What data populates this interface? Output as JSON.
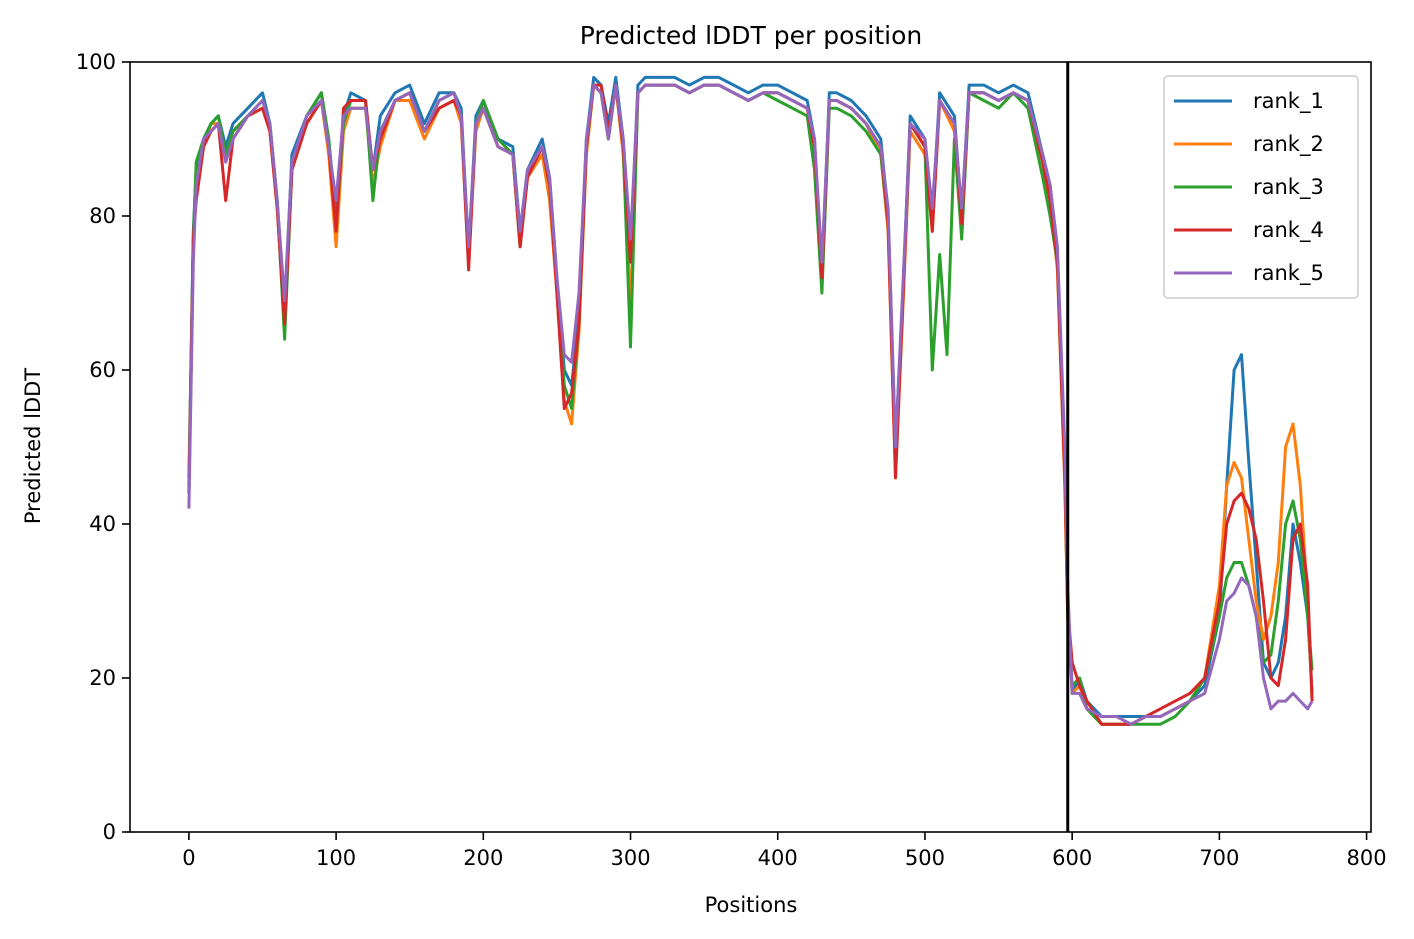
{
  "chart_data": {
    "type": "line",
    "title": "Predicted lDDT per position",
    "xlabel": "Positions",
    "ylabel": "Predicted lDDT",
    "xlim": [
      -40,
      803
    ],
    "ylim": [
      0,
      100
    ],
    "xticks": [
      0,
      100,
      200,
      300,
      400,
      500,
      600,
      700,
      800
    ],
    "xtick_labels": [
      "0",
      "100",
      "200",
      "300",
      "400",
      "500",
      "600",
      "700",
      "800"
    ],
    "yticks": [
      0,
      20,
      40,
      60,
      80,
      100
    ],
    "ytick_labels": [
      "0",
      "20",
      "40",
      "60",
      "80",
      "100"
    ],
    "vline": 597,
    "grid": false,
    "legend_position": "top-right",
    "series": [
      {
        "name": "rank_1",
        "color": "#1f77b4",
        "x": [
          0,
          3,
          5,
          10,
          15,
          20,
          25,
          30,
          40,
          50,
          55,
          60,
          65,
          70,
          80,
          90,
          95,
          100,
          105,
          110,
          120,
          125,
          130,
          140,
          150,
          160,
          170,
          180,
          185,
          190,
          195,
          200,
          210,
          220,
          225,
          230,
          240,
          245,
          250,
          255,
          260,
          265,
          270,
          275,
          280,
          285,
          290,
          295,
          300,
          305,
          310,
          320,
          330,
          340,
          350,
          360,
          370,
          380,
          390,
          400,
          410,
          420,
          425,
          430,
          435,
          440,
          450,
          460,
          470,
          475,
          480,
          485,
          490,
          500,
          505,
          510,
          520,
          525,
          530,
          540,
          550,
          560,
          570,
          580,
          585,
          590,
          595,
          597,
          600,
          605,
          610,
          620,
          630,
          640,
          650,
          660,
          670,
          680,
          690,
          700,
          705,
          710,
          715,
          720,
          725,
          730,
          735,
          740,
          745,
          750,
          755,
          760,
          763
        ],
        "y": [
          46,
          78,
          86,
          90,
          92,
          93,
          89,
          92,
          94,
          96,
          92,
          82,
          67,
          88,
          93,
          96,
          90,
          80,
          93,
          96,
          95,
          86,
          93,
          96,
          97,
          92,
          96,
          96,
          94,
          75,
          93,
          95,
          90,
          89,
          78,
          86,
          90,
          85,
          72,
          60,
          58,
          67,
          90,
          98,
          97,
          92,
          98,
          90,
          75,
          97,
          98,
          98,
          98,
          97,
          98,
          98,
          97,
          96,
          97,
          97,
          96,
          95,
          90,
          72,
          96,
          96,
          95,
          93,
          90,
          80,
          50,
          70,
          93,
          90,
          80,
          96,
          93,
          80,
          97,
          97,
          96,
          97,
          96,
          88,
          84,
          75,
          48,
          30,
          18,
          20,
          17,
          15,
          15,
          15,
          15,
          15,
          16,
          17,
          19,
          28,
          45,
          60,
          62,
          48,
          35,
          22,
          20,
          22,
          28,
          40,
          35,
          28,
          18
        ]
      },
      {
        "name": "rank_2",
        "color": "#ff7f0e",
        "x": [
          0,
          3,
          5,
          10,
          15,
          20,
          25,
          30,
          40,
          50,
          55,
          60,
          65,
          70,
          80,
          90,
          95,
          100,
          105,
          110,
          120,
          125,
          130,
          140,
          150,
          160,
          170,
          180,
          185,
          190,
          195,
          200,
          210,
          220,
          225,
          230,
          240,
          245,
          250,
          255,
          260,
          265,
          270,
          275,
          280,
          285,
          290,
          295,
          300,
          305,
          310,
          320,
          330,
          340,
          350,
          360,
          370,
          380,
          390,
          400,
          410,
          420,
          425,
          430,
          435,
          440,
          450,
          460,
          470,
          475,
          480,
          485,
          490,
          500,
          505,
          510,
          520,
          525,
          530,
          540,
          550,
          560,
          570,
          580,
          585,
          590,
          595,
          597,
          600,
          605,
          610,
          620,
          630,
          640,
          650,
          660,
          670,
          680,
          690,
          700,
          705,
          710,
          715,
          720,
          725,
          730,
          735,
          740,
          745,
          750,
          755,
          760,
          763
        ],
        "y": [
          44,
          76,
          84,
          89,
          92,
          92,
          88,
          91,
          93,
          94,
          91,
          81,
          66,
          86,
          92,
          95,
          88,
          76,
          91,
          94,
          94,
          84,
          89,
          95,
          95,
          90,
          94,
          95,
          92,
          74,
          91,
          94,
          89,
          88,
          76,
          85,
          88,
          82,
          70,
          56,
          53,
          65,
          88,
          97,
          96,
          90,
          97,
          88,
          68,
          96,
          97,
          97,
          97,
          96,
          97,
          97,
          96,
          95,
          96,
          96,
          95,
          94,
          89,
          71,
          95,
          95,
          94,
          92,
          88,
          78,
          46,
          68,
          91,
          88,
          78,
          95,
          91,
          78,
          96,
          96,
          95,
          96,
          95,
          87,
          82,
          73,
          45,
          28,
          18,
          19,
          16,
          14,
          14,
          14,
          15,
          15,
          16,
          17,
          20,
          32,
          45,
          48,
          46,
          38,
          30,
          25,
          28,
          35,
          50,
          53,
          45,
          30,
          17
        ]
      },
      {
        "name": "rank_3",
        "color": "#2ca02c",
        "x": [
          0,
          3,
          5,
          10,
          15,
          20,
          25,
          30,
          40,
          50,
          55,
          60,
          65,
          70,
          80,
          90,
          95,
          100,
          105,
          110,
          120,
          125,
          130,
          140,
          150,
          160,
          170,
          180,
          185,
          190,
          195,
          200,
          210,
          220,
          225,
          230,
          240,
          245,
          250,
          255,
          260,
          265,
          270,
          275,
          280,
          285,
          290,
          295,
          300,
          305,
          310,
          320,
          330,
          340,
          350,
          360,
          370,
          380,
          390,
          400,
          410,
          420,
          425,
          430,
          435,
          440,
          450,
          460,
          470,
          475,
          480,
          485,
          490,
          500,
          505,
          510,
          515,
          520,
          525,
          530,
          540,
          550,
          560,
          570,
          580,
          585,
          590,
          595,
          597,
          600,
          605,
          610,
          620,
          630,
          640,
          650,
          660,
          670,
          680,
          690,
          700,
          705,
          710,
          715,
          720,
          725,
          730,
          735,
          740,
          745,
          750,
          755,
          760,
          763
        ],
        "y": [
          45,
          77,
          87,
          90,
          92,
          93,
          88,
          91,
          93,
          95,
          92,
          82,
          64,
          86,
          93,
          96,
          90,
          79,
          92,
          95,
          95,
          82,
          91,
          95,
          96,
          91,
          95,
          96,
          93,
          75,
          92,
          95,
          90,
          88,
          76,
          86,
          89,
          84,
          71,
          58,
          55,
          66,
          89,
          97,
          96,
          90,
          97,
          89,
          63,
          96,
          97,
          97,
          97,
          96,
          97,
          97,
          96,
          95,
          96,
          95,
          94,
          93,
          86,
          70,
          94,
          94,
          93,
          91,
          88,
          79,
          48,
          70,
          92,
          89,
          60,
          75,
          62,
          90,
          77,
          96,
          95,
          94,
          96,
          94,
          85,
          80,
          74,
          47,
          28,
          19,
          20,
          16,
          14,
          14,
          14,
          14,
          14,
          15,
          17,
          20,
          28,
          33,
          35,
          35,
          32,
          28,
          22,
          23,
          30,
          40,
          43,
          38,
          28,
          21
        ]
      },
      {
        "name": "rank_4",
        "color": "#d62728",
        "x": [
          0,
          3,
          5,
          10,
          15,
          20,
          25,
          30,
          40,
          50,
          55,
          60,
          65,
          70,
          80,
          90,
          95,
          100,
          105,
          110,
          120,
          125,
          130,
          140,
          150,
          160,
          170,
          180,
          185,
          190,
          195,
          200,
          210,
          220,
          225,
          230,
          240,
          245,
          250,
          255,
          260,
          265,
          270,
          275,
          280,
          285,
          290,
          295,
          300,
          305,
          310,
          320,
          330,
          340,
          350,
          360,
          370,
          380,
          390,
          400,
          410,
          420,
          425,
          430,
          435,
          440,
          450,
          460,
          470,
          475,
          480,
          485,
          490,
          500,
          505,
          510,
          520,
          525,
          530,
          540,
          550,
          560,
          570,
          580,
          585,
          590,
          595,
          597,
          600,
          605,
          610,
          620,
          630,
          640,
          650,
          660,
          670,
          680,
          690,
          700,
          705,
          710,
          715,
          720,
          725,
          730,
          735,
          740,
          745,
          750,
          755,
          760,
          763
        ],
        "y": [
          44,
          77,
          82,
          89,
          91,
          92,
          82,
          90,
          93,
          94,
          91,
          81,
          66,
          86,
          92,
          95,
          89,
          78,
          94,
          95,
          95,
          86,
          90,
          95,
          96,
          91,
          94,
          95,
          93,
          73,
          92,
          94,
          89,
          88,
          76,
          85,
          89,
          84,
          70,
          55,
          57,
          66,
          89,
          97,
          97,
          91,
          97,
          89,
          74,
          96,
          97,
          97,
          97,
          96,
          97,
          97,
          96,
          95,
          96,
          96,
          95,
          94,
          89,
          72,
          95,
          95,
          94,
          92,
          89,
          79,
          46,
          69,
          92,
          89,
          78,
          95,
          92,
          79,
          96,
          96,
          95,
          96,
          95,
          87,
          82,
          74,
          46,
          29,
          22,
          19,
          17,
          14,
          14,
          14,
          15,
          16,
          17,
          18,
          20,
          30,
          40,
          43,
          44,
          42,
          38,
          30,
          20,
          19,
          25,
          38,
          40,
          32,
          17
        ]
      },
      {
        "name": "rank_5",
        "color": "#9467bd",
        "x": [
          0,
          3,
          5,
          10,
          15,
          20,
          25,
          30,
          40,
          50,
          55,
          60,
          65,
          70,
          80,
          90,
          95,
          100,
          105,
          110,
          120,
          125,
          130,
          140,
          150,
          160,
          170,
          180,
          185,
          190,
          195,
          200,
          210,
          220,
          225,
          230,
          240,
          245,
          250,
          255,
          260,
          265,
          270,
          275,
          280,
          285,
          290,
          295,
          300,
          305,
          310,
          320,
          330,
          340,
          350,
          360,
          370,
          380,
          390,
          400,
          410,
          420,
          425,
          430,
          435,
          440,
          450,
          460,
          470,
          475,
          480,
          485,
          490,
          500,
          505,
          510,
          520,
          525,
          530,
          540,
          550,
          560,
          570,
          580,
          585,
          590,
          595,
          597,
          600,
          605,
          610,
          620,
          630,
          640,
          650,
          660,
          670,
          680,
          690,
          700,
          705,
          710,
          715,
          720,
          725,
          730,
          735,
          740,
          745,
          750,
          755,
          760,
          763
        ],
        "y": [
          42,
          74,
          84,
          90,
          91,
          92,
          87,
          90,
          93,
          95,
          92,
          82,
          69,
          87,
          93,
          95,
          89,
          82,
          93,
          94,
          94,
          86,
          91,
          95,
          96,
          91,
          95,
          96,
          93,
          76,
          92,
          94,
          89,
          88,
          78,
          86,
          89,
          85,
          72,
          62,
          61,
          70,
          90,
          97,
          96,
          90,
          97,
          90,
          77,
          96,
          97,
          97,
          97,
          96,
          97,
          97,
          96,
          95,
          96,
          96,
          95,
          94,
          90,
          74,
          95,
          95,
          94,
          92,
          89,
          81,
          50,
          71,
          92,
          90,
          81,
          95,
          92,
          81,
          96,
          96,
          95,
          96,
          95,
          88,
          84,
          76,
          50,
          32,
          18,
          18,
          16,
          15,
          15,
          14,
          15,
          15,
          16,
          17,
          18,
          25,
          30,
          31,
          33,
          32,
          28,
          20,
          16,
          17,
          17,
          18,
          17,
          16,
          17
        ]
      }
    ]
  }
}
